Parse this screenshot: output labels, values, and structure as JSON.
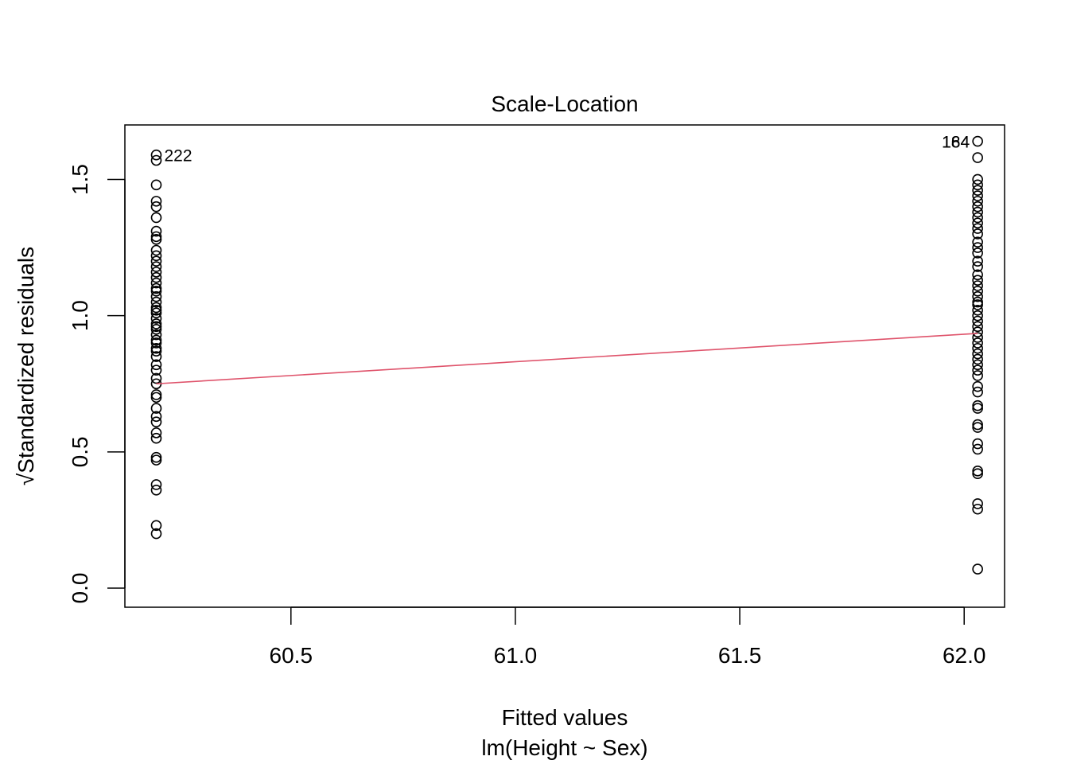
{
  "chart_data": {
    "type": "scatter",
    "title": "Scale-Location",
    "xlabel": "Fitted values",
    "subtitle": "lm(Height ~ Sex)",
    "ylabel_text": "Standardized residuals",
    "ylabel_prefix": "√",
    "xlim": [
      60.13,
      62.09
    ],
    "ylim": [
      -0.07,
      1.7
    ],
    "x_ticks": [
      {
        "value": 60.5,
        "label": "60.5"
      },
      {
        "value": 61.0,
        "label": "61.0"
      },
      {
        "value": 61.5,
        "label": "61.5"
      },
      {
        "value": 62.0,
        "label": "62.0"
      }
    ],
    "y_ticks": [
      {
        "value": 0.0,
        "label": "0.0"
      },
      {
        "value": 0.5,
        "label": "0.5"
      },
      {
        "value": 1.0,
        "label": "1.0"
      },
      {
        "value": 1.5,
        "label": "1.5"
      }
    ],
    "grid": false,
    "series": [
      {
        "x": 60.2,
        "values": [
          1.59,
          1.57,
          1.48,
          1.42,
          1.4,
          1.36,
          1.31,
          1.29,
          1.28,
          1.24,
          1.22,
          1.2,
          1.18,
          1.16,
          1.14,
          1.12,
          1.1,
          1.09,
          1.07,
          1.05,
          1.03,
          1.02,
          1.01,
          0.99,
          0.97,
          0.96,
          0.95,
          0.93,
          0.91,
          0.9,
          0.88,
          0.87,
          0.85,
          0.82,
          0.8,
          0.77,
          0.75,
          0.71,
          0.7,
          0.66,
          0.63,
          0.61,
          0.57,
          0.55,
          0.48,
          0.47,
          0.38,
          0.36,
          0.23,
          0.2
        ]
      },
      {
        "x": 62.03,
        "values": [
          1.64,
          1.58,
          1.5,
          1.48,
          1.46,
          1.44,
          1.42,
          1.4,
          1.38,
          1.36,
          1.34,
          1.32,
          1.3,
          1.27,
          1.25,
          1.23,
          1.2,
          1.18,
          1.15,
          1.13,
          1.11,
          1.09,
          1.07,
          1.05,
          1.04,
          1.02,
          1.0,
          0.98,
          0.96,
          0.94,
          0.92,
          0.9,
          0.88,
          0.86,
          0.84,
          0.82,
          0.8,
          0.78,
          0.74,
          0.72,
          0.67,
          0.66,
          0.6,
          0.59,
          0.53,
          0.51,
          0.43,
          0.42,
          0.31,
          0.29,
          0.07
        ]
      }
    ],
    "smoother": {
      "color": "#DF536B",
      "points": [
        [
          60.2,
          0.75
        ],
        [
          62.03,
          0.935
        ]
      ]
    },
    "annotations": [
      {
        "text": "222",
        "x": 60.2,
        "y": 1.59,
        "side": "right"
      },
      {
        "text": "164",
        "x": 62.03,
        "y": 1.64,
        "side": "left"
      },
      {
        "text": "184",
        "x": 62.03,
        "y": 1.64,
        "side": "left"
      }
    ]
  }
}
